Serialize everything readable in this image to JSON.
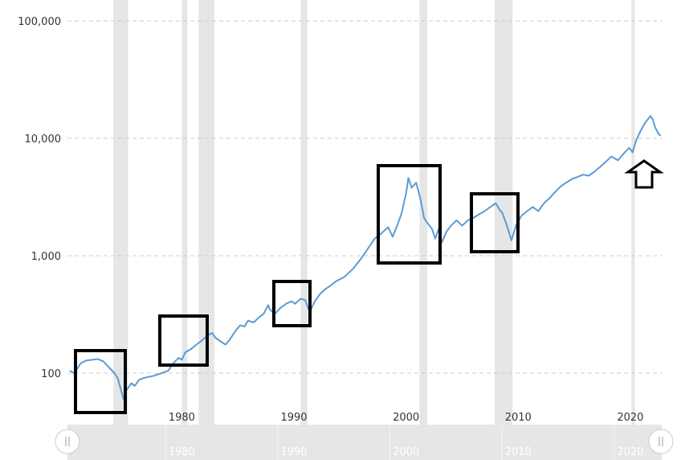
{
  "chart_data": {
    "type": "line",
    "title": "",
    "xlabel": "",
    "ylabel": "",
    "y_scale": "log",
    "ylim": [
      50,
      100000
    ],
    "xlim": [
      1969.8,
      2022.8
    ],
    "y_ticks": [
      {
        "value": 100,
        "label": "100"
      },
      {
        "value": 1000,
        "label": "1,000"
      },
      {
        "value": 10000,
        "label": "10,000"
      },
      {
        "value": 100000,
        "label": "100,000"
      }
    ],
    "x_ticks": [
      {
        "value": 1980,
        "label": "1980"
      },
      {
        "value": 1990,
        "label": "1990"
      },
      {
        "value": 2000,
        "label": "2000"
      },
      {
        "value": 2010,
        "label": "2010"
      },
      {
        "value": 2020,
        "label": "2020"
      }
    ],
    "grid": {
      "horizontal": true,
      "vertical": false
    },
    "legend": "none",
    "colors": {
      "line": "#5b9bd5",
      "recession": "#e6e6e6",
      "grid": "#cccccc",
      "annotation": "#000000"
    },
    "recessions": [
      [
        1973.9,
        1975.2
      ],
      [
        1980.0,
        1980.5
      ],
      [
        1981.5,
        1982.9
      ],
      [
        1990.6,
        1991.2
      ],
      [
        2001.2,
        2001.9
      ],
      [
        2007.9,
        2009.5
      ],
      [
        2020.1,
        2020.4
      ]
    ],
    "series": [
      {
        "values": [
          [
            1970.0,
            105
          ],
          [
            1970.4,
            100
          ],
          [
            1971.0,
            122
          ],
          [
            1971.5,
            128
          ],
          [
            1972.0,
            130
          ],
          [
            1972.5,
            132
          ],
          [
            1973.0,
            126
          ],
          [
            1973.5,
            112
          ],
          [
            1974.0,
            100
          ],
          [
            1974.3,
            90
          ],
          [
            1974.8,
            60
          ],
          [
            1975.0,
            70
          ],
          [
            1975.5,
            82
          ],
          [
            1975.8,
            78
          ],
          [
            1976.2,
            88
          ],
          [
            1976.8,
            92
          ],
          [
            1977.5,
            95
          ],
          [
            1978.2,
            100
          ],
          [
            1978.8,
            105
          ],
          [
            1979.2,
            120
          ],
          [
            1979.7,
            135
          ],
          [
            1980.0,
            130
          ],
          [
            1980.3,
            150
          ],
          [
            1980.8,
            160
          ],
          [
            1981.3,
            175
          ],
          [
            1981.8,
            190
          ],
          [
            1982.3,
            210
          ],
          [
            1982.7,
            220
          ],
          [
            1983.0,
            200
          ],
          [
            1983.5,
            185
          ],
          [
            1983.9,
            175
          ],
          [
            1984.3,
            195
          ],
          [
            1984.8,
            230
          ],
          [
            1985.2,
            255
          ],
          [
            1985.6,
            250
          ],
          [
            1985.9,
            280
          ],
          [
            1986.4,
            270
          ],
          [
            1986.9,
            300
          ],
          [
            1987.3,
            320
          ],
          [
            1987.7,
            380
          ],
          [
            1987.85,
            350
          ],
          [
            1988.3,
            320
          ],
          [
            1988.8,
            360
          ],
          [
            1989.3,
            390
          ],
          [
            1989.8,
            410
          ],
          [
            1990.1,
            390
          ],
          [
            1990.6,
            430
          ],
          [
            1991.0,
            420
          ],
          [
            1991.4,
            330
          ],
          [
            1991.8,
            400
          ],
          [
            1992.3,
            470
          ],
          [
            1992.8,
            520
          ],
          [
            1993.3,
            560
          ],
          [
            1993.8,
            610
          ],
          [
            1994.5,
            660
          ],
          [
            1995.3,
            780
          ],
          [
            1996.0,
            950
          ],
          [
            1996.6,
            1150
          ],
          [
            1997.2,
            1400
          ],
          [
            1997.8,
            1550
          ],
          [
            1998.4,
            1750
          ],
          [
            1998.8,
            1450
          ],
          [
            1999.2,
            1800
          ],
          [
            1999.6,
            2300
          ],
          [
            2000.0,
            3400
          ],
          [
            2000.2,
            4600
          ],
          [
            2000.5,
            3800
          ],
          [
            2000.9,
            4200
          ],
          [
            2001.3,
            3000
          ],
          [
            2001.6,
            2100
          ],
          [
            2001.9,
            1900
          ],
          [
            2002.3,
            1700
          ],
          [
            2002.6,
            1400
          ],
          [
            2002.9,
            1700
          ],
          [
            2003.2,
            1300
          ],
          [
            2003.6,
            1600
          ],
          [
            2004.0,
            1800
          ],
          [
            2004.5,
            2000
          ],
          [
            2005.0,
            1800
          ],
          [
            2005.5,
            2000
          ],
          [
            2006.0,
            2100
          ],
          [
            2006.5,
            2250
          ],
          [
            2007.0,
            2400
          ],
          [
            2007.5,
            2600
          ],
          [
            2008.0,
            2800
          ],
          [
            2008.3,
            2500
          ],
          [
            2008.6,
            2300
          ],
          [
            2009.0,
            1800
          ],
          [
            2009.4,
            1350
          ],
          [
            2009.8,
            1800
          ],
          [
            2010.3,
            2200
          ],
          [
            2010.8,
            2400
          ],
          [
            2011.3,
            2600
          ],
          [
            2011.8,
            2400
          ],
          [
            2012.3,
            2800
          ],
          [
            2012.8,
            3100
          ],
          [
            2013.3,
            3500
          ],
          [
            2013.8,
            3900
          ],
          [
            2014.3,
            4200
          ],
          [
            2014.8,
            4500
          ],
          [
            2015.3,
            4700
          ],
          [
            2015.8,
            4900
          ],
          [
            2016.3,
            4800
          ],
          [
            2016.8,
            5200
          ],
          [
            2017.3,
            5700
          ],
          [
            2017.8,
            6300
          ],
          [
            2018.3,
            7000
          ],
          [
            2018.9,
            6500
          ],
          [
            2019.4,
            7400
          ],
          [
            2019.9,
            8300
          ],
          [
            2020.2,
            7600
          ],
          [
            2020.5,
            9500
          ],
          [
            2020.9,
            11500
          ],
          [
            2021.3,
            13500
          ],
          [
            2021.8,
            15500
          ],
          [
            2022.0,
            14500
          ],
          [
            2022.2,
            12500
          ],
          [
            2022.5,
            11000
          ],
          [
            2022.7,
            10500
          ]
        ]
      }
    ]
  }
}
